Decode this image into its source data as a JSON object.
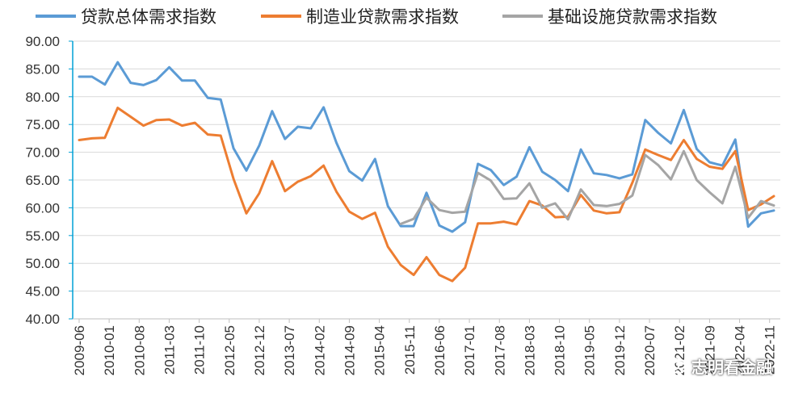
{
  "chart_data": {
    "type": "line",
    "title": "",
    "xlabel": "",
    "ylabel": "",
    "ylim": [
      40,
      90
    ],
    "yticks": [
      "40.00",
      "45.00",
      "50.00",
      "55.00",
      "60.00",
      "65.00",
      "70.00",
      "75.00",
      "80.00",
      "85.00",
      "90.00"
    ],
    "grid": true,
    "legend_position": "top",
    "tick_labels": [
      "2009-06",
      "2010-01",
      "2010-08",
      "2011-03",
      "2011-10",
      "2012-05",
      "2012-12",
      "2013-07",
      "2014-02",
      "2014-09",
      "2015-04",
      "2015-11",
      "2016-06",
      "2017-01",
      "2017-08",
      "2018-03",
      "2018-10",
      "2019-05",
      "2019-12",
      "2020-07",
      "2021-02",
      "2021-09",
      "2022-04",
      "2022-11"
    ],
    "x": [
      "2009-06",
      "2009-09",
      "2009-12",
      "2010-03",
      "2010-06",
      "2010-09",
      "2010-12",
      "2011-03",
      "2011-06",
      "2011-09",
      "2011-12",
      "2012-03",
      "2012-06",
      "2012-09",
      "2012-12",
      "2013-03",
      "2013-06",
      "2013-09",
      "2013-12",
      "2014-03",
      "2014-06",
      "2014-09",
      "2014-12",
      "2015-03",
      "2015-06",
      "2015-09",
      "2015-12",
      "2016-03",
      "2016-06",
      "2016-09",
      "2016-12",
      "2017-03",
      "2017-06",
      "2017-09",
      "2017-12",
      "2018-03",
      "2018-06",
      "2018-09",
      "2018-12",
      "2019-03",
      "2019-06",
      "2019-09",
      "2019-12",
      "2020-03",
      "2020-06",
      "2020-09",
      "2020-12",
      "2021-03",
      "2021-06",
      "2021-09",
      "2021-12",
      "2022-03",
      "2022-06",
      "2022-09",
      "2022-12"
    ],
    "series": [
      {
        "name": "贷款总体需求指数",
        "color": "#5B9BD5",
        "values": [
          83.6,
          83.6,
          82.2,
          86.2,
          82.5,
          82.1,
          83.0,
          85.3,
          82.9,
          82.9,
          79.8,
          79.5,
          70.7,
          66.7,
          71.2,
          77.4,
          72.4,
          74.6,
          74.3,
          78.1,
          71.7,
          66.6,
          64.9,
          68.8,
          60.3,
          56.7,
          56.7,
          62.7,
          56.8,
          55.7,
          57.4,
          67.9,
          66.8,
          64.1,
          65.6,
          70.9,
          66.5,
          65.0,
          63.0,
          70.5,
          66.2,
          65.9,
          65.3,
          66.0,
          75.8,
          73.5,
          71.6,
          77.6,
          70.6,
          68.2,
          67.6,
          72.3,
          56.6,
          59.0,
          59.5
        ]
      },
      {
        "name": "制造业贷款需求指数",
        "color": "#ED7D31",
        "values": [
          72.2,
          72.5,
          72.6,
          78.0,
          76.4,
          74.8,
          75.8,
          75.9,
          74.8,
          75.3,
          73.2,
          73.0,
          65.2,
          59.0,
          62.6,
          68.4,
          63.0,
          64.7,
          65.7,
          67.6,
          62.9,
          59.3,
          58.0,
          59.1,
          53.0,
          49.7,
          47.9,
          51.1,
          47.9,
          46.8,
          49.2,
          57.2,
          57.2,
          57.5,
          57.0,
          61.2,
          60.4,
          58.3,
          58.4,
          62.3,
          59.5,
          59.0,
          59.2,
          64.5,
          70.5,
          69.5,
          68.6,
          72.2,
          68.8,
          67.4,
          67.0,
          70.2,
          59.6,
          60.6,
          62.1
        ]
      },
      {
        "name": "基础设施贷款需求指数",
        "color": "#A5A5A5",
        "values": [
          null,
          null,
          null,
          null,
          null,
          null,
          null,
          null,
          null,
          null,
          null,
          null,
          null,
          null,
          null,
          null,
          null,
          null,
          null,
          null,
          null,
          null,
          null,
          null,
          null,
          57.1,
          58.0,
          61.8,
          59.6,
          59.1,
          59.3,
          66.3,
          64.9,
          61.6,
          61.7,
          64.4,
          60.0,
          60.8,
          57.9,
          63.3,
          60.5,
          60.3,
          60.7,
          62.2,
          69.5,
          67.7,
          65.1,
          70.2,
          65.0,
          62.8,
          60.8,
          67.4,
          58.2,
          61.2,
          60.4
        ]
      }
    ]
  },
  "legend": [
    {
      "label": "贷款总体需求指数",
      "color": "#5B9BD5"
    },
    {
      "label": "制造业贷款需求指数",
      "color": "#ED7D31"
    },
    {
      "label": "基础设施贷款需求指数",
      "color": "#A5A5A5"
    }
  ],
  "watermark": {
    "text": "志明看金融",
    "icon": "wechat-icon"
  }
}
